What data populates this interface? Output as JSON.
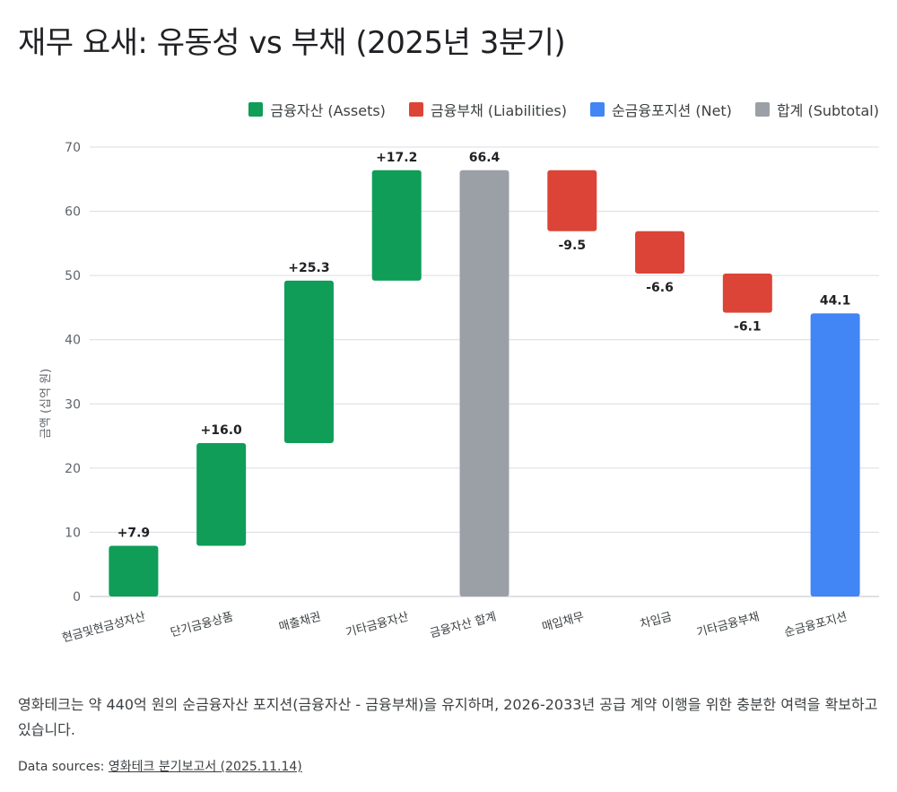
{
  "title": "재무 요새: 유동성 vs 부채 (2025년 3분기)",
  "legend": [
    {
      "label": "금융자산 (Assets)",
      "color": "#0f9d58"
    },
    {
      "label": "금융부채 (Liabilities)",
      "color": "#db4437"
    },
    {
      "label": "순금융포지션 (Net)",
      "color": "#4285f4"
    },
    {
      "label": "합계 (Subtotal)",
      "color": "#9aa0a6"
    }
  ],
  "chart_data": {
    "type": "bar",
    "subtype": "waterfall",
    "ylabel": "금액 (십억 원)",
    "ylim": [
      0,
      70
    ],
    "yticks": [
      0,
      10,
      20,
      30,
      40,
      50,
      60,
      70
    ],
    "grid": true,
    "legend_position": "top-right",
    "bars": [
      {
        "category": "현금및현금성자산",
        "start": 0,
        "end": 7.9,
        "label": "+7.9",
        "kind": "asset"
      },
      {
        "category": "단기금융상품",
        "start": 7.9,
        "end": 23.9,
        "label": "+16.0",
        "kind": "asset"
      },
      {
        "category": "매출채권",
        "start": 23.9,
        "end": 49.2,
        "label": "+25.3",
        "kind": "asset"
      },
      {
        "category": "기타금융자산",
        "start": 49.2,
        "end": 66.4,
        "label": "+17.2",
        "kind": "asset"
      },
      {
        "category": "금융자산 합계",
        "start": 0,
        "end": 66.4,
        "label": "66.4",
        "kind": "subtotal"
      },
      {
        "category": "매입채무",
        "start": 66.4,
        "end": 56.9,
        "label": "-9.5",
        "kind": "liability"
      },
      {
        "category": "차입금",
        "start": 56.9,
        "end": 50.3,
        "label": "-6.6",
        "kind": "liability"
      },
      {
        "category": "기타금융부채",
        "start": 50.3,
        "end": 44.2,
        "label": "-6.1",
        "kind": "liability"
      },
      {
        "category": "순금융포지션",
        "start": 0,
        "end": 44.1,
        "label": "44.1",
        "kind": "net"
      }
    ],
    "colors": {
      "asset": "#0f9d58",
      "liability": "#db4437",
      "net": "#4285f4",
      "subtotal": "#9aa0a6"
    }
  },
  "note": "영화테크는 약 440억 원의 순금융자산 포지션(금융자산 - 금융부채)을 유지하며, 2026-2033년 공급 계약 이행을 위한 충분한 여력을 확보하고 있습니다.",
  "sources": {
    "prefix": "Data sources: ",
    "link_text": "영화테크 분기보고서 (2025.11.14)"
  }
}
